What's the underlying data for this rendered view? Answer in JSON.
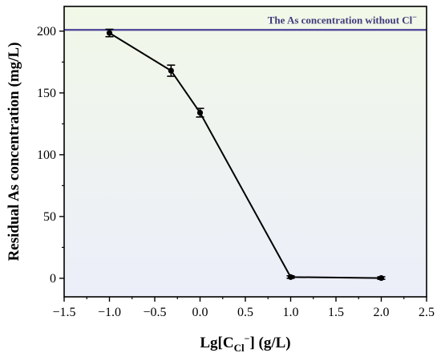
{
  "chart_data": {
    "type": "line",
    "title": "",
    "xlabel": "Lg[C",
    "xlabel_sub": "Cl",
    "xlabel_sup": "−",
    "xlabel_tail": "] (g/L)",
    "ylabel": "Residual As concentration (mg/L)",
    "xlim": [
      -1.5,
      2.5
    ],
    "ylim": [
      -15,
      220
    ],
    "xticks": [
      -1.5,
      -1.0,
      -0.5,
      0.0,
      0.5,
      1.0,
      1.5,
      2.0,
      2.5
    ],
    "xtick_labels": [
      "−1.5",
      "−1.0",
      "−0.5",
      "0.0",
      "0.5",
      "1.0",
      "1.5",
      "2.0",
      "2.5"
    ],
    "yticks": [
      0,
      50,
      100,
      150,
      200
    ],
    "ytick_labels": [
      "0",
      "50",
      "100",
      "150",
      "200"
    ],
    "grid": false,
    "background_gradient": [
      "#f1f8e8",
      "#eceef9"
    ],
    "series": [
      {
        "x": [
          -1.0,
          -0.32,
          0.0,
          1.0,
          2.0
        ],
        "y": [
          198.5,
          168,
          134,
          1,
          0.2
        ],
        "err": [
          3,
          4.5,
          3.5,
          1,
          1
        ],
        "color": "#000000"
      }
    ],
    "reference_line": {
      "y": 201,
      "color": "#4b4296",
      "label": "The As concentration without Cl",
      "label_sup": "−"
    }
  }
}
